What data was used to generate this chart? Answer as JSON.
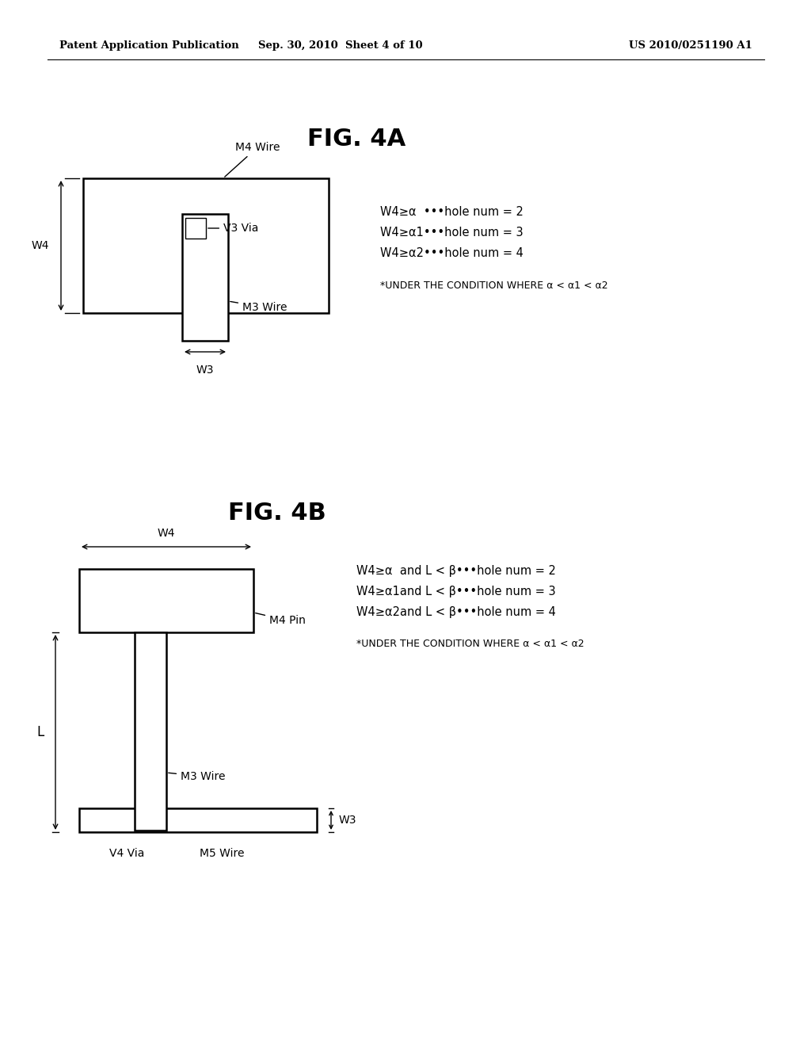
{
  "bg_color": "#ffffff",
  "header_left": "Patent Application Publication",
  "header_center": "Sep. 30, 2010  Sheet 4 of 10",
  "header_right": "US 2010/0251190 A1",
  "fig4a_title": "FIG. 4A",
  "fig4b_title": "FIG. 4B",
  "fig4a": {
    "m4_wire_label": "M4 Wire",
    "m3_wire_label": "M3 Wire",
    "v3_via_label": "V3 Via",
    "w4_label": "W4",
    "w3_label": "W3",
    "conditions": [
      "W4≥α  •••hole num = 2",
      "W4≥α1•••hole num = 3",
      "W4≥α2•••hole num = 4"
    ],
    "under_condition": "*UNDER THE CONDITION WHERE α < α1 < α2"
  },
  "fig4b": {
    "m4_pin_label": "M4 Pin",
    "m3_wire_label": "M3 Wire",
    "m5_wire_label": "M5 Wire",
    "v4_via_label": "V4 Via",
    "w4_label": "W4",
    "w3_label": "W3",
    "l_label": "L",
    "conditions": [
      "W4≥α  and L < β•••hole num = 2",
      "W4≥α1and L < β•••hole num = 3",
      "W4≥α2and L < β•••hole num = 4"
    ],
    "under_condition": "*UNDER THE CONDITION WHERE α < α1 < α2"
  }
}
